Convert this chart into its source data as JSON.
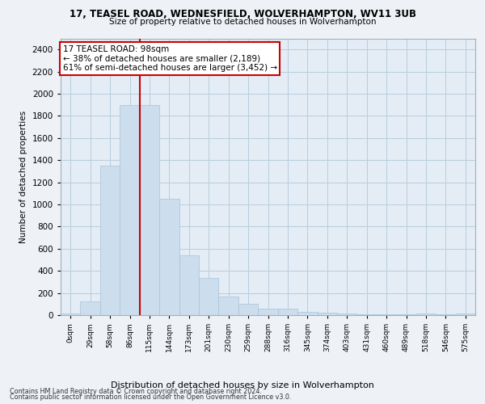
{
  "title1": "17, TEASEL ROAD, WEDNESFIELD, WOLVERHAMPTON, WV11 3UB",
  "title2": "Size of property relative to detached houses in Wolverhampton",
  "xlabel": "Distribution of detached houses by size in Wolverhampton",
  "ylabel": "Number of detached properties",
  "categories": [
    "0sqm",
    "29sqm",
    "58sqm",
    "86sqm",
    "115sqm",
    "144sqm",
    "173sqm",
    "201sqm",
    "230sqm",
    "259sqm",
    "288sqm",
    "316sqm",
    "345sqm",
    "374sqm",
    "403sqm",
    "431sqm",
    "460sqm",
    "489sqm",
    "518sqm",
    "546sqm",
    "575sqm"
  ],
  "values": [
    15,
    125,
    1350,
    1900,
    1900,
    1050,
    540,
    335,
    170,
    105,
    60,
    55,
    30,
    20,
    15,
    10,
    5,
    5,
    15,
    5,
    15
  ],
  "bar_color": "#ccdded",
  "bar_edge_color": "#a8c4d8",
  "vline_color": "#cc0000",
  "annotation_text": "17 TEASEL ROAD: 98sqm\n← 38% of detached houses are smaller (2,189)\n61% of semi-detached houses are larger (3,452) →",
  "annotation_box_color": "#ffffff",
  "annotation_box_edge_color": "#cc0000",
  "ylim": [
    0,
    2500
  ],
  "yticks": [
    0,
    200,
    400,
    600,
    800,
    1000,
    1200,
    1400,
    1600,
    1800,
    2000,
    2200,
    2400
  ],
  "grid_color": "#b8cedd",
  "footer1": "Contains HM Land Registry data © Crown copyright and database right 2024.",
  "footer2": "Contains public sector information licensed under the Open Government Licence v3.0.",
  "bg_color": "#eef2f7",
  "plot_bg_color": "#e4ecf5",
  "title1_fontsize": 8.5,
  "title2_fontsize": 7.5,
  "ylabel_fontsize": 7.5,
  "xlabel_fontsize": 8.0,
  "ytick_fontsize": 7.5,
  "xtick_fontsize": 6.5,
  "footer_fontsize": 5.8,
  "ann_fontsize": 7.5,
  "vline_x_index": 3
}
